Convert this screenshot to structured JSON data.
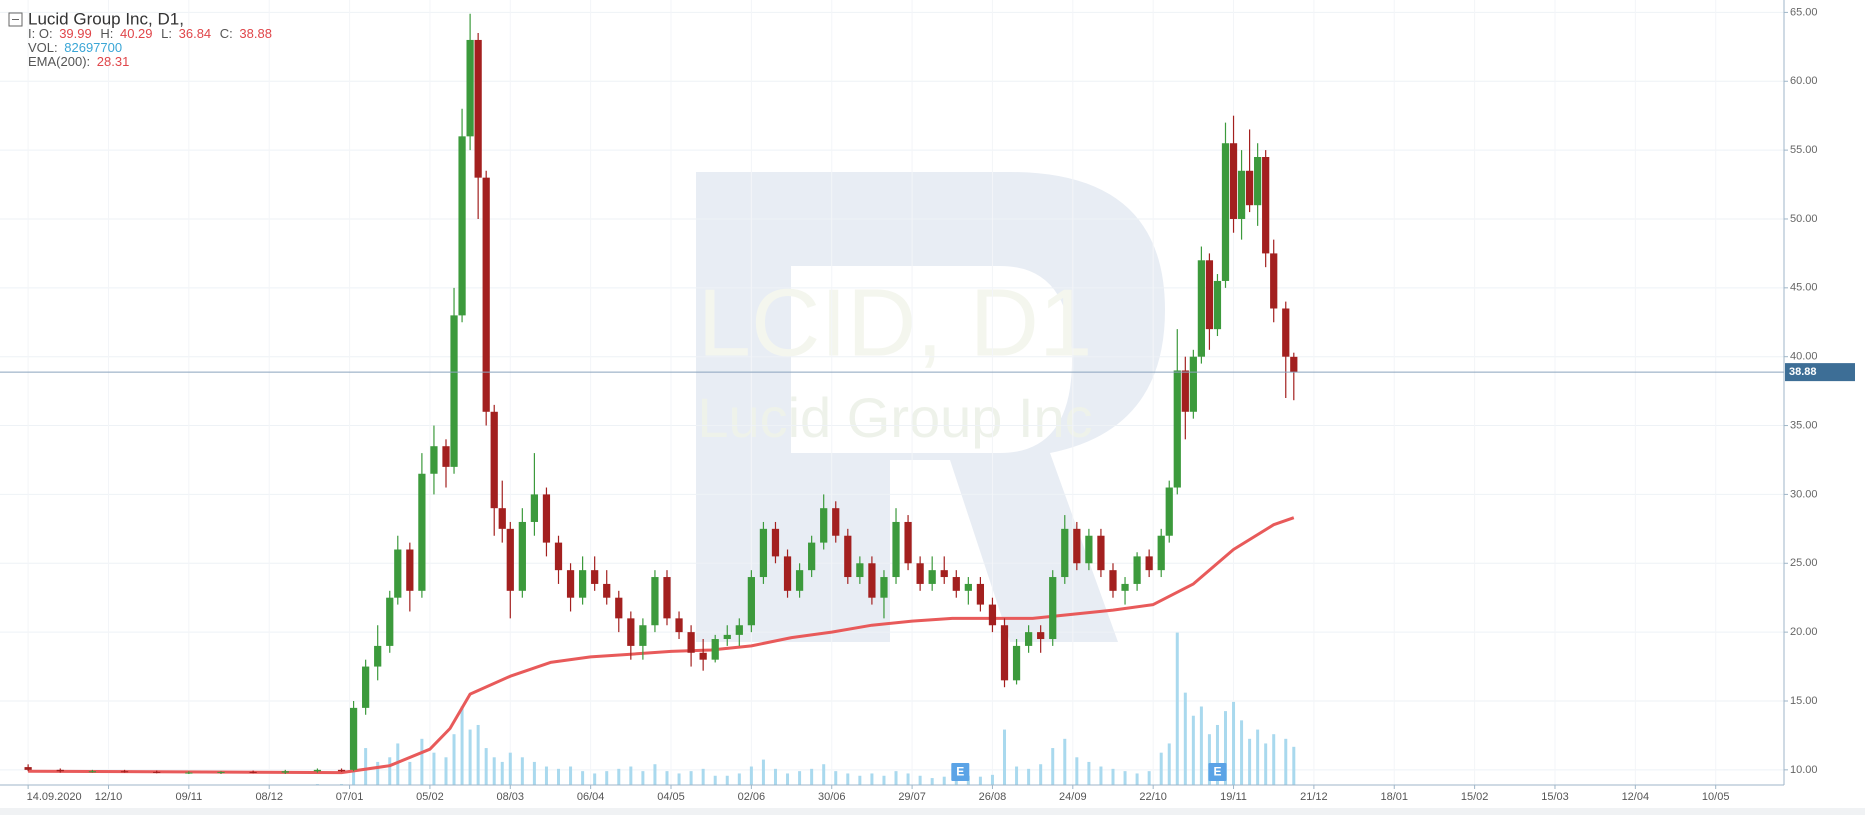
{
  "chart_data": {
    "type": "candlestick",
    "header": {
      "title": "Lucid Group Inc,  D1,",
      "ohlc_prefix": "I: O:",
      "open": 39.99,
      "high_label": "H:",
      "high": 40.29,
      "low_label": "L:",
      "low": 36.84,
      "close_label": "C:",
      "close": 38.88,
      "vol_label": "VOL:",
      "volume": 82697700,
      "ema_label": "EMA(200):",
      "ema": 28.31
    },
    "watermark": {
      "ticker": "LCID, D1",
      "name": "Lucid Group Inc"
    },
    "x": [
      0,
      8,
      16,
      24,
      32,
      40,
      48,
      56,
      64,
      72,
      78,
      81,
      84,
      87,
      90,
      92,
      95,
      98,
      101,
      104,
      106,
      108,
      110,
      112,
      114,
      116,
      118,
      120,
      123,
      126,
      129,
      132,
      135,
      138,
      141,
      144,
      147,
      150,
      153,
      156,
      159,
      162,
      165,
      168,
      171,
      174,
      177,
      180,
      183,
      186,
      189,
      192,
      195,
      198,
      201,
      204,
      207,
      210,
      213,
      216,
      219,
      222,
      225,
      228,
      231,
      234,
      237,
      240,
      243,
      246,
      249,
      252,
      255,
      258,
      261,
      264,
      267,
      270,
      273,
      276,
      279,
      282,
      284,
      286,
      288,
      290,
      292,
      294,
      296,
      298,
      300,
      302,
      304,
      306,
      308,
      310,
      313,
      315
    ],
    "open": [
      10.2,
      10.0,
      9.9,
      9.9,
      9.85,
      9.8,
      9.8,
      9.85,
      9.8,
      9.9,
      10.0,
      10.0,
      14.5,
      17.5,
      19.0,
      22.5,
      26.0,
      23.0,
      31.5,
      33.5,
      32.0,
      43.0,
      56.0,
      63.0,
      53.0,
      36.0,
      29.0,
      27.5,
      23.0,
      28.0,
      30.0,
      26.5,
      24.5,
      22.5,
      24.5,
      23.5,
      22.5,
      21.0,
      19.0,
      20.5,
      24.0,
      21.0,
      20.0,
      18.5,
      18.0,
      19.5,
      19.8,
      20.5,
      24.0,
      27.5,
      25.5,
      23.0,
      24.5,
      26.5,
      29.0,
      27.0,
      24.0,
      25.0,
      22.5,
      24.0,
      28.0,
      25.0,
      23.5,
      24.5,
      24.0,
      23.0,
      23.5,
      22.0,
      20.5,
      16.5,
      19.0,
      20.0,
      19.5,
      24.0,
      27.5,
      25.0,
      27.0,
      24.5,
      23.0,
      23.5,
      25.5,
      24.5,
      27.0,
      30.5,
      39.0,
      36.0,
      40.0,
      47.0,
      42.0,
      45.5,
      55.5,
      50.0,
      53.5,
      51.0,
      54.5,
      47.5,
      43.5,
      39.99
    ],
    "high": [
      10.4,
      10.1,
      10.0,
      10.0,
      9.95,
      9.9,
      9.9,
      9.95,
      10.0,
      10.1,
      10.1,
      15.0,
      18.0,
      20.5,
      23.0,
      27.0,
      26.5,
      33.0,
      35.0,
      34.0,
      45.0,
      58.0,
      64.9,
      63.5,
      53.5,
      36.5,
      31.0,
      28.0,
      29.0,
      33.0,
      30.5,
      27.0,
      25.0,
      25.5,
      25.5,
      24.5,
      23.0,
      21.5,
      21.0,
      24.5,
      24.5,
      21.5,
      20.5,
      19.5,
      19.8,
      20.5,
      21.0,
      24.5,
      28.0,
      28.0,
      26.0,
      25.0,
      27.0,
      30.0,
      29.5,
      27.5,
      25.5,
      25.5,
      24.5,
      29.0,
      28.5,
      25.5,
      25.5,
      25.5,
      24.5,
      24.0,
      24.0,
      22.5,
      21.0,
      19.5,
      20.5,
      20.5,
      24.5,
      28.5,
      28.0,
      27.5,
      27.5,
      25.0,
      24.0,
      25.8,
      26.0,
      27.5,
      31.0,
      42.0,
      40.0,
      40.5,
      48.0,
      47.5,
      46.0,
      57.0,
      57.5,
      55.0,
      56.5,
      55.5,
      55.0,
      48.5,
      44.0,
      40.29
    ],
    "low": [
      9.9,
      9.8,
      9.8,
      9.8,
      9.75,
      9.7,
      9.7,
      9.75,
      9.7,
      9.8,
      9.85,
      9.9,
      14.0,
      16.5,
      18.5,
      22.0,
      21.5,
      22.5,
      30.0,
      30.5,
      31.5,
      42.5,
      55.0,
      50.0,
      35.0,
      27.0,
      26.5,
      21.0,
      22.5,
      27.0,
      25.5,
      23.5,
      21.5,
      22.0,
      23.0,
      22.0,
      20.0,
      18.0,
      18.0,
      20.0,
      20.5,
      19.5,
      17.5,
      17.2,
      17.8,
      19.0,
      19.0,
      20.0,
      23.5,
      25.0,
      22.5,
      22.5,
      24.0,
      26.0,
      26.5,
      23.5,
      23.5,
      22.0,
      21.0,
      23.5,
      24.5,
      23.0,
      23.0,
      23.5,
      22.5,
      22.0,
      21.5,
      20.0,
      16.0,
      16.2,
      18.5,
      18.5,
      19.0,
      23.5,
      24.5,
      24.5,
      24.0,
      22.5,
      22.0,
      23.0,
      24.0,
      24.0,
      26.5,
      30.0,
      34.0,
      35.5,
      39.5,
      40.5,
      41.5,
      45.0,
      49.0,
      48.5,
      50.5,
      49.5,
      46.5,
      42.5,
      37.0,
      36.84
    ],
    "close": [
      10.0,
      9.9,
      9.9,
      9.85,
      9.8,
      9.8,
      9.85,
      9.8,
      9.9,
      10.0,
      9.9,
      14.5,
      17.5,
      19.0,
      22.5,
      26.0,
      23.0,
      31.5,
      33.5,
      32.0,
      43.0,
      56.0,
      63.0,
      53.0,
      36.0,
      29.0,
      27.5,
      23.0,
      28.0,
      30.0,
      26.5,
      24.5,
      22.5,
      24.5,
      23.5,
      22.5,
      21.0,
      19.0,
      20.5,
      24.0,
      21.0,
      20.0,
      18.5,
      18.0,
      19.5,
      19.8,
      20.5,
      24.0,
      27.5,
      25.5,
      23.0,
      24.5,
      26.5,
      29.0,
      27.0,
      24.0,
      25.0,
      22.5,
      24.0,
      28.0,
      25.0,
      23.5,
      24.5,
      24.0,
      23.0,
      23.5,
      22.0,
      20.5,
      16.5,
      19.0,
      20.0,
      19.5,
      24.0,
      27.5,
      25.0,
      27.0,
      24.5,
      23.0,
      23.5,
      25.5,
      24.5,
      27.0,
      30.5,
      39.0,
      36.0,
      40.0,
      47.0,
      42.0,
      45.5,
      55.5,
      50.0,
      53.5,
      51.0,
      54.5,
      47.5,
      43.5,
      40.0,
      38.88
    ],
    "volume": [
      1000000,
      1000000,
      1000000,
      1000000,
      1000000,
      1000000,
      1000000,
      1000000,
      1000000,
      2000000,
      2000000,
      60000000,
      80000000,
      50000000,
      60000000,
      90000000,
      50000000,
      100000000,
      70000000,
      60000000,
      110000000,
      170000000,
      120000000,
      130000000,
      80000000,
      60000000,
      50000000,
      70000000,
      60000000,
      50000000,
      40000000,
      35000000,
      40000000,
      30000000,
      25000000,
      30000000,
      35000000,
      40000000,
      30000000,
      45000000,
      30000000,
      25000000,
      30000000,
      35000000,
      20000000,
      20000000,
      25000000,
      40000000,
      55000000,
      35000000,
      25000000,
      30000000,
      35000000,
      45000000,
      30000000,
      25000000,
      20000000,
      25000000,
      20000000,
      30000000,
      25000000,
      20000000,
      15000000,
      18000000,
      15000000,
      20000000,
      18000000,
      22000000,
      120000000,
      40000000,
      35000000,
      45000000,
      80000000,
      100000000,
      60000000,
      50000000,
      40000000,
      35000000,
      30000000,
      25000000,
      30000000,
      70000000,
      90000000,
      330000000,
      200000000,
      150000000,
      170000000,
      110000000,
      130000000,
      160000000,
      180000000,
      140000000,
      100000000,
      120000000,
      90000000,
      110000000,
      100000000,
      82697700
    ],
    "up_color": "#3c9a3c",
    "down_color": "#a3201f",
    "volume_color": "#a9d9ee",
    "ema": {
      "color": "#e85a5a",
      "x": [
        0,
        78,
        90,
        100,
        105,
        110,
        120,
        130,
        140,
        150,
        160,
        170,
        180,
        190,
        200,
        210,
        220,
        230,
        240,
        250,
        260,
        270,
        280,
        290,
        300,
        310,
        315
      ],
      "values": [
        9.9,
        9.8,
        10.3,
        11.5,
        13.0,
        15.5,
        16.8,
        17.8,
        18.2,
        18.4,
        18.6,
        18.7,
        19.0,
        19.6,
        20.0,
        20.5,
        20.8,
        21.0,
        21.0,
        21.0,
        21.3,
        21.6,
        22.0,
        23.5,
        26.0,
        27.8,
        28.31
      ]
    },
    "events": [
      {
        "x": 232,
        "label": "E"
      },
      {
        "x": 296,
        "label": "E"
      }
    ],
    "xlim": [
      -7,
      437
    ],
    "ylim": [
      8.9,
      65.9
    ],
    "volume_ylim": [
      0,
      1700000000
    ],
    "xticks": [
      {
        "value": 0,
        "label": "14.09.2020"
      },
      {
        "value": 20,
        "label": "12/10"
      },
      {
        "value": 40,
        "label": "09/11"
      },
      {
        "value": 60,
        "label": "08/12"
      },
      {
        "value": 80,
        "label": "07/01"
      },
      {
        "value": 100,
        "label": "05/02"
      },
      {
        "value": 120,
        "label": "08/03"
      },
      {
        "value": 140,
        "label": "06/04"
      },
      {
        "value": 160,
        "label": "04/05"
      },
      {
        "value": 180,
        "label": "02/06"
      },
      {
        "value": 200,
        "label": "30/06"
      },
      {
        "value": 220,
        "label": "29/07"
      },
      {
        "value": 240,
        "label": "26/08"
      },
      {
        "value": 260,
        "label": "24/09"
      },
      {
        "value": 280,
        "label": "22/10"
      },
      {
        "value": 300,
        "label": "19/11"
      },
      {
        "value": 320,
        "label": "21/12"
      },
      {
        "value": 340,
        "label": "18/01"
      },
      {
        "value": 360,
        "label": "15/02"
      },
      {
        "value": 380,
        "label": "15/03"
      },
      {
        "value": 400,
        "label": "12/04"
      },
      {
        "value": 420,
        "label": "10/05"
      }
    ],
    "yticks": [
      {
        "value": 10,
        "label": "10.00"
      },
      {
        "value": 15,
        "label": "15.00"
      },
      {
        "value": 20,
        "label": "20.00"
      },
      {
        "value": 25,
        "label": "25.00"
      },
      {
        "value": 30,
        "label": "30.00"
      },
      {
        "value": 35,
        "label": "35.00"
      },
      {
        "value": 40,
        "label": "40.00"
      },
      {
        "value": 45,
        "label": "45.00"
      },
      {
        "value": 50,
        "label": "50.00"
      },
      {
        "value": 55,
        "label": "55.00"
      },
      {
        "value": 60,
        "label": "60.00"
      },
      {
        "value": 65,
        "label": "65.00"
      }
    ],
    "grid": true
  }
}
